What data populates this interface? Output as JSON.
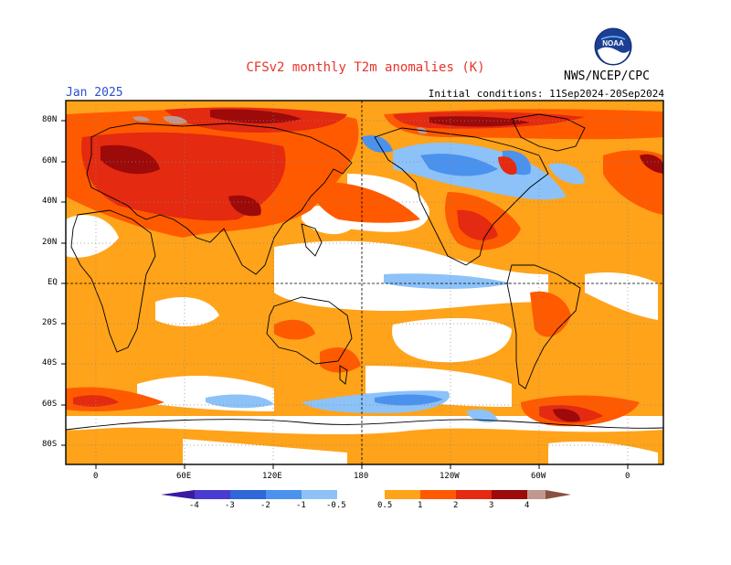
{
  "title": "CFSv2 monthly T2m anomalies (K)",
  "month": "Jan 2025",
  "agency": "NWS/NCEP/CPC",
  "logo_text": "NOAA",
  "initial_conditions": "Initial conditions: 11Sep2024-20Sep2024",
  "lat_labels": [
    "80N",
    "60N",
    "40N",
    "20N",
    "EQ",
    "20S",
    "40S",
    "60S",
    "80S"
  ],
  "lon_labels": [
    "0",
    "60E",
    "120E",
    "180",
    "120W",
    "60W",
    "0"
  ],
  "colorbar": {
    "labels": [
      "-4",
      "-3",
      "-2",
      "-1",
      "-0.5",
      "0.5",
      "1",
      "2",
      "3",
      "4"
    ],
    "colors": {
      "lt_-4": "#3a1aa0",
      "-4_-3": "#4a3bd0",
      "-3_-2": "#2f67d8",
      "-2_-1": "#4a92ee",
      "-1_-0.5": "#8cc2f8",
      "-0.5_0.5": "#ffffff",
      "0.5_1": "#ffa31a",
      "1_2": "#ff5a00",
      "2_3": "#e42a10",
      "3_4": "#9c0a0a",
      "4_5": "#c09890",
      "gt_5": "#8a5040"
    }
  }
}
